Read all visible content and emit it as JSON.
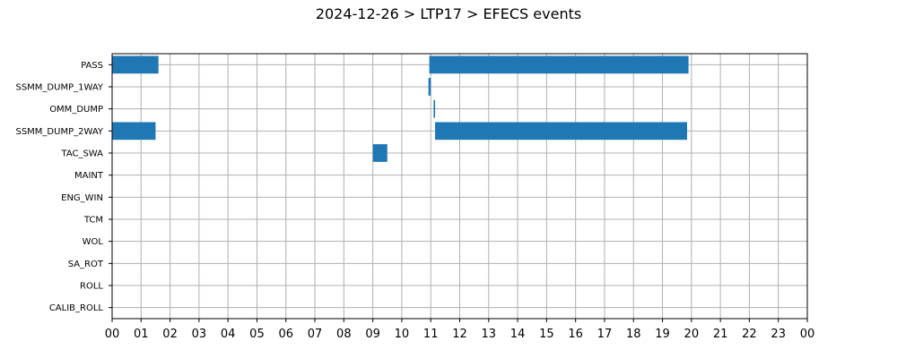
{
  "chart_data": {
    "type": "bar",
    "orientation": "horizontal-timeline",
    "title": "2024-12-26 > LTP17 > EFECS events",
    "xlabel": "",
    "ylabel": "",
    "categories": [
      "PASS",
      "SSMM_DUMP_1WAY",
      "OMM_DUMP",
      "SSMM_DUMP_2WAY",
      "TAC_SWA",
      "MAINT",
      "ENG_WIN",
      "TCM",
      "WOL",
      "SA_ROT",
      "ROLL",
      "CALIB_ROLL"
    ],
    "x_ticks": [
      "00",
      "01",
      "02",
      "03",
      "04",
      "05",
      "06",
      "07",
      "08",
      "09",
      "10",
      "11",
      "12",
      "13",
      "14",
      "15",
      "16",
      "17",
      "18",
      "19",
      "20",
      "21",
      "22",
      "23",
      "00"
    ],
    "xlim_hours": [
      0,
      24
    ],
    "grid": true,
    "bar_color": "#1f77b4",
    "events": [
      {
        "category": "PASS",
        "start_hour": 0.0,
        "end_hour": 1.6
      },
      {
        "category": "PASS",
        "start_hour": 10.95,
        "end_hour": 19.9
      },
      {
        "category": "SSMM_DUMP_1WAY",
        "start_hour": 10.92,
        "end_hour": 11.0
      },
      {
        "category": "OMM_DUMP",
        "start_hour": 11.1,
        "end_hour": 11.15
      },
      {
        "category": "SSMM_DUMP_2WAY",
        "start_hour": 0.0,
        "end_hour": 1.5
      },
      {
        "category": "SSMM_DUMP_2WAY",
        "start_hour": 11.15,
        "end_hour": 19.85
      },
      {
        "category": "TAC_SWA",
        "start_hour": 9.0,
        "end_hour": 9.5
      }
    ]
  }
}
